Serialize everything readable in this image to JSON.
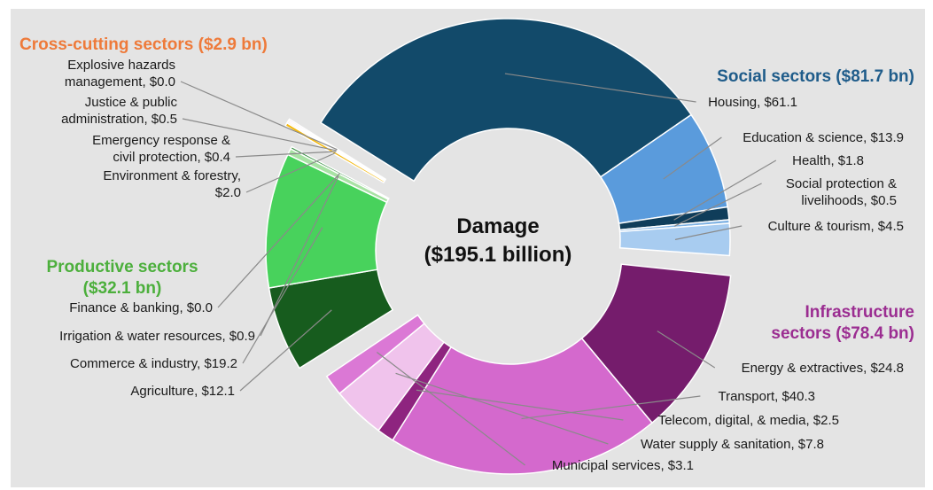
{
  "chart_data": {
    "type": "pie",
    "variant": "donut",
    "center_title": [
      "Damage",
      "($195.1 billion)"
    ],
    "unit": "$ billion",
    "groups": [
      {
        "key": "social",
        "title": [
          "Social sectors ($81.7 bn)"
        ],
        "color": "#1f5c8a",
        "sectors": [
          {
            "label": [
              "Housing, $61.1"
            ],
            "value": 61.1,
            "color": "#124a6a"
          },
          {
            "label": [
              "Education & science, $13.9"
            ],
            "value": 13.9,
            "color": "#5a9bdc"
          },
          {
            "label": [
              "Health, $1.8"
            ],
            "value": 1.8,
            "color": "#0f3d5a"
          },
          {
            "label": [
              "Social protection &",
              "livelihoods, $0.5"
            ],
            "value": 0.5,
            "color": "#7fb2e3"
          },
          {
            "label": [
              "Culture & tourism, $4.5"
            ],
            "value": 4.5,
            "color": "#a8ccf0"
          }
        ]
      },
      {
        "key": "infrastructure",
        "title": [
          "Infrastructure",
          "sectors ($78.4 bn)"
        ],
        "color": "#9b2d91",
        "sectors": [
          {
            "label": [
              "Energy & extractives, $24.8"
            ],
            "value": 24.8,
            "color": "#751c6c"
          },
          {
            "label": [
              "Transport, $40.3"
            ],
            "value": 40.3,
            "color": "#d469cd"
          },
          {
            "label": [
              "Telecom, digital, & media, $2.5"
            ],
            "value": 2.5,
            "color": "#8e247f"
          },
          {
            "label": [
              "Water supply & sanitation, $7.8"
            ],
            "value": 7.8,
            "color": "#f0c3ec"
          },
          {
            "label": [
              "Municipal services, $3.1"
            ],
            "value": 3.1,
            "color": "#db78d5"
          }
        ]
      },
      {
        "key": "productive",
        "title": [
          "Productive sectors",
          "($32.1 bn)"
        ],
        "color": "#4caf3c",
        "sectors": [
          {
            "label": [
              "Agriculture, $12.1"
            ],
            "value": 12.1,
            "color": "#175c1e"
          },
          {
            "label": [
              "Commerce & industry, $19.2"
            ],
            "value": 19.2,
            "color": "#48d25c"
          },
          {
            "label": [
              "Irrigation & water resources, $0.9"
            ],
            "value": 0.9,
            "color": "#a8e2a4"
          },
          {
            "label": [
              "Finance & banking, $0.0"
            ],
            "value": 0.0,
            "color": "#2e8b3a"
          }
        ]
      },
      {
        "key": "crosscutting",
        "title": [
          "Cross-cutting sectors ($2.9 bn)"
        ],
        "color": "#ee7a3a",
        "sectors": [
          {
            "label": [
              "Environment & forestry,",
              "$2.0"
            ],
            "value": 2.0,
            "color": "#f4b90f"
          },
          {
            "label": [
              "Emergency response &",
              "civil protection, $0.4"
            ],
            "value": 0.4,
            "color": "#f09a3a"
          },
          {
            "label": [
              "Justice & public",
              "administration, $0.5"
            ],
            "value": 0.5,
            "color": "#e878c8"
          },
          {
            "label": [
              "Explosive hazards",
              "management, $0.0"
            ],
            "value": 0.0,
            "color": "#d0a0c8"
          }
        ]
      }
    ]
  }
}
